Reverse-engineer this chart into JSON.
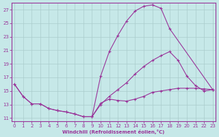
{
  "background_color": "#c6e8e8",
  "line_color": "#993399",
  "grid_color": "#aacccc",
  "xlabel": "Windchill (Refroidissement éolien,°C)",
  "xlim": [
    -0.3,
    23.3
  ],
  "ylim": [
    10.5,
    28.0
  ],
  "xticks": [
    0,
    1,
    2,
    3,
    4,
    5,
    6,
    7,
    8,
    9,
    10,
    11,
    12,
    13,
    14,
    15,
    16,
    17,
    18,
    19,
    20,
    21,
    22,
    23
  ],
  "yticks": [
    11,
    13,
    15,
    17,
    19,
    21,
    23,
    25,
    27
  ],
  "curve1_x": [
    0,
    1,
    2,
    3,
    4,
    5,
    6,
    7,
    8,
    9,
    10,
    11,
    12,
    13,
    14,
    15,
    16,
    17,
    18,
    19,
    20,
    21,
    22,
    23
  ],
  "curve1_y": [
    16.0,
    14.2,
    13.1,
    13.1,
    12.4,
    12.1,
    11.9,
    11.6,
    11.2,
    11.2,
    13.2,
    13.8,
    13.6,
    13.5,
    13.8,
    14.2,
    14.8,
    15.0,
    15.2,
    15.4,
    15.4,
    15.4,
    15.3,
    15.2
  ],
  "curve2_x": [
    0,
    1,
    2,
    3,
    4,
    5,
    6,
    7,
    8,
    9,
    10,
    11,
    12,
    13,
    14,
    15,
    16,
    17,
    18,
    23
  ],
  "curve2_y": [
    16.0,
    14.2,
    13.1,
    13.1,
    12.4,
    12.1,
    11.9,
    11.6,
    11.2,
    11.2,
    17.2,
    20.8,
    23.2,
    25.3,
    26.8,
    27.5,
    27.7,
    27.2,
    24.2,
    15.2
  ],
  "curve3_x": [
    9,
    10,
    11,
    12,
    13,
    14,
    15,
    16,
    17,
    18,
    19,
    20,
    21,
    22,
    23
  ],
  "curve3_y": [
    11.2,
    13.0,
    14.2,
    15.2,
    16.2,
    17.5,
    18.6,
    19.5,
    20.2,
    20.8,
    19.5,
    17.2,
    15.8,
    15.0,
    15.2
  ]
}
